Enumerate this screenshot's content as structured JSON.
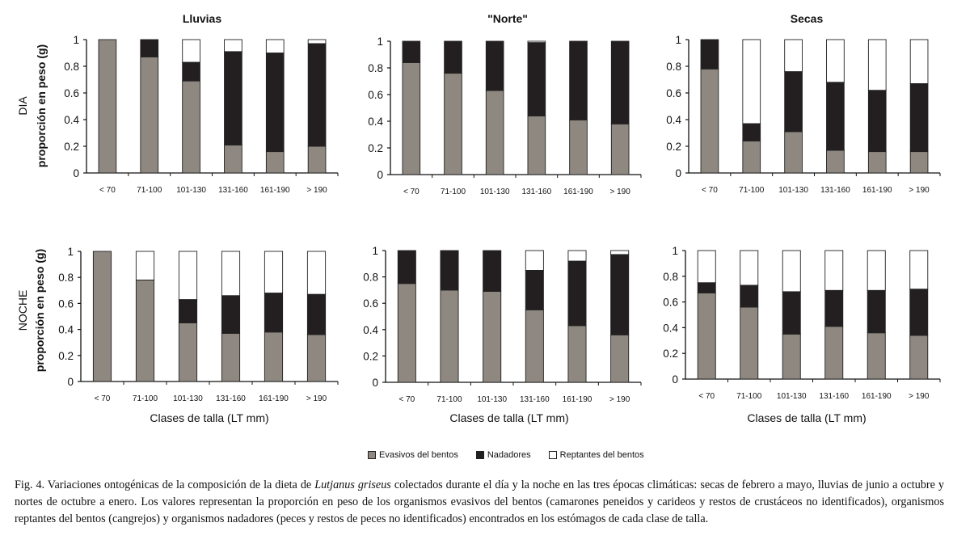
{
  "colors": {
    "Evasivos del bentos": "#8e8880",
    "Nadadores": "#231f20",
    "Reptantes del bentos": "#ffffff"
  },
  "row_labels": [
    "DIA",
    "NOCHE"
  ],
  "y_label": "proporción en peso (g)",
  "x_label": "Clases de talla (LT mm)",
  "legend": [
    "Evasivos del bentos",
    "Nadadores",
    "Reptantes del bentos"
  ],
  "caption": {
    "part1": "Fig. 4. Variaciones ontogénicas de la composición de la dieta de ",
    "species": "Lutjanus griseus",
    "part2": " colectados durante el día y la noche en las tres épocas climáticas: secas de febrero a mayo, lluvias de junio a octubre y nortes de octubre a enero. Los valores representan la proporción en peso de los organismos evasivos del bentos (camarones peneidos y carideos y restos de crustáceos no identificados), organismos reptantes del bentos (cangrejos) y organismos nadadores (peces y restos de peces no identificados) encontrados en los estómagos de cada clase de talla."
  },
  "chart_data": [
    {
      "type": "bar",
      "stacked": true,
      "title": "Lluvias",
      "row": "DIA",
      "categories": [
        "< 70",
        "71-100",
        "101-130",
        "131-160",
        "161-190",
        "> 190"
      ],
      "ylim": [
        0,
        1
      ],
      "yticks": [
        "0",
        "0.2",
        "0.4",
        "0.6",
        "0.8",
        "1"
      ],
      "series": [
        {
          "name": "Evasivos del bentos",
          "values": [
            1.0,
            0.87,
            0.69,
            0.21,
            0.16,
            0.2
          ]
        },
        {
          "name": "Nadadores",
          "values": [
            0.0,
            0.13,
            0.14,
            0.7,
            0.74,
            0.77
          ]
        },
        {
          "name": "Reptantes del bentos",
          "values": [
            0.0,
            0.0,
            0.17,
            0.09,
            0.1,
            0.03
          ]
        }
      ]
    },
    {
      "type": "bar",
      "stacked": true,
      "title": "\"Norte\"",
      "row": "DIA",
      "categories": [
        "< 70",
        "71-100",
        "101-130",
        "131-160",
        "161-190",
        "> 190"
      ],
      "ylim": [
        0,
        1
      ],
      "yticks": [
        "0",
        "0.2",
        "0.4",
        "0.6",
        "0.8",
        "1"
      ],
      "series": [
        {
          "name": "Evasivos del bentos",
          "values": [
            0.84,
            0.76,
            0.63,
            0.44,
            0.41,
            0.38
          ]
        },
        {
          "name": "Nadadores",
          "values": [
            0.16,
            0.24,
            0.37,
            0.55,
            0.59,
            0.62
          ]
        },
        {
          "name": "Reptantes del bentos",
          "values": [
            0.0,
            0.0,
            0.0,
            0.01,
            0.0,
            0.0
          ]
        }
      ]
    },
    {
      "type": "bar",
      "stacked": true,
      "title": "Secas",
      "row": "DIA",
      "categories": [
        "< 70",
        "71-100",
        "101-130",
        "131-160",
        "161-190",
        "> 190"
      ],
      "ylim": [
        0,
        1
      ],
      "yticks": [
        "0",
        "0.2",
        "0.4",
        "0.6",
        "0.8",
        "1"
      ],
      "series": [
        {
          "name": "Evasivos del bentos",
          "values": [
            0.78,
            0.24,
            0.31,
            0.17,
            0.16,
            0.16
          ]
        },
        {
          "name": "Nadadores",
          "values": [
            0.22,
            0.13,
            0.45,
            0.51,
            0.46,
            0.51
          ]
        },
        {
          "name": "Reptantes del bentos",
          "values": [
            0.0,
            0.63,
            0.24,
            0.32,
            0.38,
            0.33
          ]
        }
      ]
    },
    {
      "type": "bar",
      "stacked": true,
      "title": "",
      "row": "NOCHE",
      "categories": [
        "< 70",
        "71-100",
        "101-130",
        "131-160",
        "161-190",
        "> 190"
      ],
      "ylim": [
        0,
        1
      ],
      "yticks": [
        "0",
        "0.2",
        "0.4",
        "0.6",
        "0.8",
        "1"
      ],
      "series": [
        {
          "name": "Evasivos del bentos",
          "values": [
            1.0,
            0.78,
            0.45,
            0.37,
            0.38,
            0.36
          ]
        },
        {
          "name": "Nadadores",
          "values": [
            0.0,
            0.0,
            0.18,
            0.29,
            0.3,
            0.31
          ]
        },
        {
          "name": "Reptantes del bentos",
          "values": [
            0.0,
            0.22,
            0.37,
            0.34,
            0.32,
            0.33
          ]
        }
      ]
    },
    {
      "type": "bar",
      "stacked": true,
      "title": "",
      "row": "NOCHE",
      "categories": [
        "< 70",
        "71-100",
        "101-130",
        "131-160",
        "161-190",
        "> 190"
      ],
      "ylim": [
        0,
        1
      ],
      "yticks": [
        "0",
        "0.2",
        "0.4",
        "0.6",
        "0.8",
        "1"
      ],
      "series": [
        {
          "name": "Evasivos del bentos",
          "values": [
            0.75,
            0.7,
            0.69,
            0.55,
            0.43,
            0.36
          ]
        },
        {
          "name": "Nadadores",
          "values": [
            0.25,
            0.3,
            0.31,
            0.3,
            0.49,
            0.61
          ]
        },
        {
          "name": "Reptantes del bentos",
          "values": [
            0.0,
            0.0,
            0.0,
            0.15,
            0.08,
            0.03
          ]
        }
      ]
    },
    {
      "type": "bar",
      "stacked": true,
      "title": "",
      "row": "NOCHE",
      "categories": [
        "< 70",
        "71-100",
        "101-130",
        "131-160",
        "161-190",
        "> 190"
      ],
      "ylim": [
        0,
        1
      ],
      "yticks": [
        "0",
        "0.2",
        "0.4",
        "0.6",
        "0.8",
        "1"
      ],
      "series": [
        {
          "name": "Evasivos del bentos",
          "values": [
            0.67,
            0.56,
            0.35,
            0.41,
            0.36,
            0.34
          ]
        },
        {
          "name": "Nadadores",
          "values": [
            0.08,
            0.17,
            0.33,
            0.28,
            0.33,
            0.36
          ]
        },
        {
          "name": "Reptantes del bentos",
          "values": [
            0.25,
            0.27,
            0.32,
            0.31,
            0.31,
            0.3
          ]
        }
      ]
    }
  ]
}
